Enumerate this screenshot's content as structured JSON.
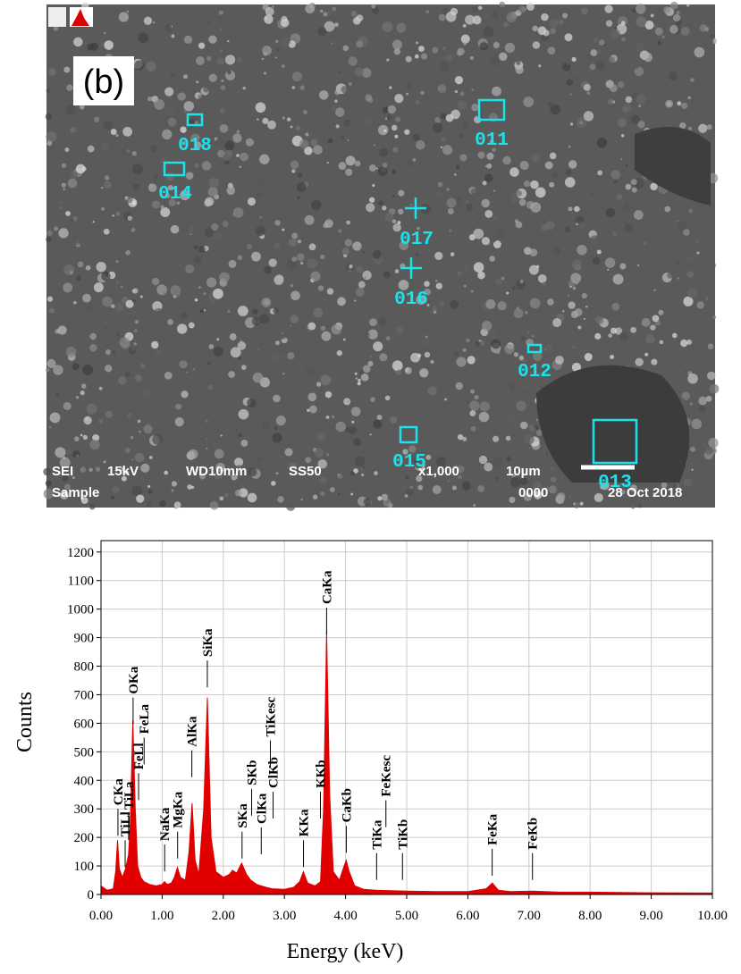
{
  "sem_image": {
    "panel_label": "(b)",
    "markers": [
      "018",
      "011",
      "014",
      "017",
      "016",
      "012",
      "015",
      "013"
    ],
    "info": [
      "SEI",
      "15kV",
      "WD10mm",
      "SS50",
      "x1,000",
      "10µm",
      "Sample",
      "0000",
      "28 Oct 2018"
    ]
  },
  "chart_data": {
    "type": "area",
    "x_label": "Energy (keV)",
    "y_label": "Counts",
    "color": "#e00000",
    "x": [
      0,
      0.1,
      0.2,
      0.24,
      0.27,
      0.3,
      0.35,
      0.4,
      0.45,
      0.48,
      0.52,
      0.56,
      0.6,
      0.65,
      0.7,
      0.8,
      0.9,
      1.0,
      1.04,
      1.08,
      1.15,
      1.2,
      1.25,
      1.3,
      1.38,
      1.44,
      1.49,
      1.54,
      1.6,
      1.68,
      1.74,
      1.8,
      1.88,
      2.0,
      2.1,
      2.15,
      2.22,
      2.3,
      2.38,
      2.45,
      2.55,
      2.62,
      2.7,
      2.8,
      3.0,
      3.15,
      3.25,
      3.31,
      3.38,
      3.5,
      3.59,
      3.64,
      3.69,
      3.74,
      3.8,
      3.9,
      3.96,
      4.01,
      4.06,
      4.15,
      4.3,
      4.5,
      5.0,
      5.5,
      6.0,
      6.3,
      6.4,
      6.5,
      6.7,
      7.06,
      7.5,
      8.0,
      9.0,
      10.0
    ],
    "values": [
      30,
      15,
      20,
      80,
      190,
      90,
      60,
      90,
      140,
      250,
      610,
      300,
      100,
      60,
      45,
      35,
      30,
      35,
      45,
      35,
      40,
      60,
      95,
      60,
      50,
      150,
      320,
      120,
      70,
      300,
      690,
      200,
      80,
      60,
      70,
      85,
      75,
      110,
      70,
      50,
      35,
      30,
      25,
      20,
      18,
      25,
      45,
      80,
      40,
      30,
      45,
      300,
      920,
      350,
      80,
      50,
      90,
      120,
      80,
      30,
      18,
      15,
      12,
      10,
      10,
      20,
      40,
      15,
      10,
      12,
      8,
      8,
      6,
      5
    ],
    "xlim": [
      0,
      10
    ],
    "ylim": [
      0,
      1240
    ],
    "xticks": [
      {
        "value": 0,
        "label": "0.00"
      },
      {
        "value": 1,
        "label": "1.00"
      },
      {
        "value": 2,
        "label": "2.00"
      },
      {
        "value": 3,
        "label": "3.00"
      },
      {
        "value": 4,
        "label": "4.00"
      },
      {
        "value": 5,
        "label": "5.00"
      },
      {
        "value": 6,
        "label": "6.00"
      },
      {
        "value": 7,
        "label": "7.00"
      },
      {
        "value": 8,
        "label": "8.00"
      },
      {
        "value": 9,
        "label": "9.00"
      },
      {
        "value": 10,
        "label": "10.00"
      }
    ],
    "yticks": [
      0,
      100,
      200,
      300,
      400,
      500,
      600,
      700,
      800,
      900,
      1000,
      1100,
      1200
    ],
    "grid": true,
    "annotations": [
      {
        "text": "CKa",
        "x": 0.277,
        "y": 300
      },
      {
        "text": "TiLl",
        "x": 0.395,
        "y": 190
      },
      {
        "text": "TiLa",
        "x": 0.452,
        "y": 285
      },
      {
        "text": "OKa",
        "x": 0.525,
        "y": 690
      },
      {
        "text": "FeLl",
        "x": 0.615,
        "y": 425
      },
      {
        "text": "FeLa",
        "x": 0.705,
        "y": 550
      },
      {
        "text": "NaKa",
        "x": 1.041,
        "y": 175
      },
      {
        "text": "MgKa",
        "x": 1.253,
        "y": 220
      },
      {
        "text": "AlKa",
        "x": 1.486,
        "y": 505
      },
      {
        "text": "SiKa",
        "x": 1.739,
        "y": 820
      },
      {
        "text": "SKa",
        "x": 2.307,
        "y": 220
      },
      {
        "text": "SKb",
        "x": 2.464,
        "y": 370
      },
      {
        "text": "ClKa",
        "x": 2.621,
        "y": 235
      },
      {
        "text": "TiKesc",
        "x": 2.77,
        "y": 540
      },
      {
        "text": "ClKb",
        "x": 2.815,
        "y": 360
      },
      {
        "text": "KKa",
        "x": 3.312,
        "y": 190
      },
      {
        "text": "KKb",
        "x": 3.589,
        "y": 360
      },
      {
        "text": "CaKa",
        "x": 3.69,
        "y": 1005
      },
      {
        "text": "CaKb",
        "x": 4.012,
        "y": 240
      },
      {
        "text": "TiKa",
        "x": 4.508,
        "y": 145
      },
      {
        "text": "FeKesc",
        "x": 4.66,
        "y": 330
      },
      {
        "text": "TiKb",
        "x": 4.931,
        "y": 145
      },
      {
        "text": "FeKa",
        "x": 6.398,
        "y": 160
      },
      {
        "text": "FeKb",
        "x": 7.057,
        "y": 145
      }
    ]
  }
}
